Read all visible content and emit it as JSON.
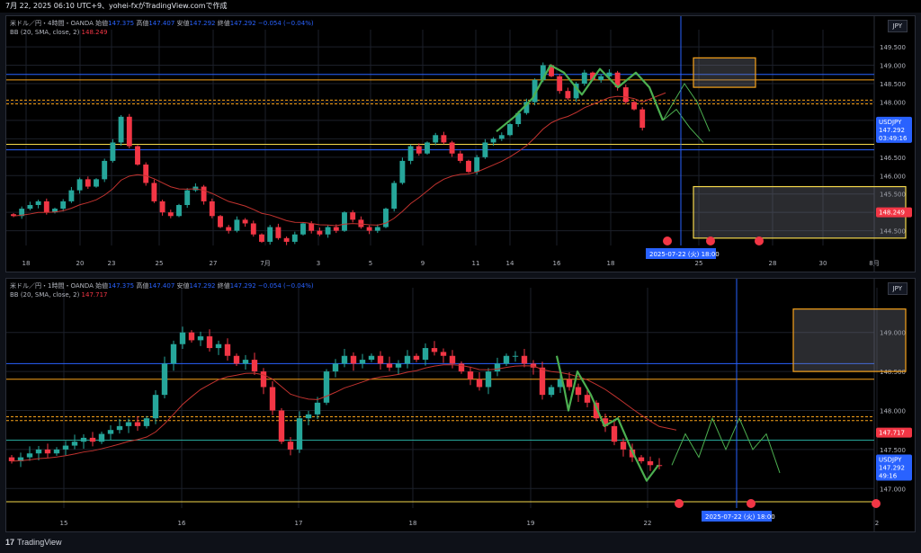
{
  "header": {
    "text": "7月 22, 2025 06:10 UTC+9、yohei-fxがTradingView.comで作成"
  },
  "colors": {
    "up": "#26a69a",
    "down": "#f23645",
    "bb": "#c2332f",
    "bg": "#000000",
    "blue_line": "#2962ff",
    "orange_line": "#f7a21b",
    "yellow_line": "#f5d84b",
    "green_path": "#4caf50"
  },
  "panes": [
    {
      "legend1": "米ドル／円・4時間・OANDA",
      "o_label": "始値",
      "o": "147.375",
      "h_label": "高値",
      "h": "147.407",
      "l_label": "安値",
      "l": "147.292",
      "c_label": "終値",
      "c": "147.292",
      "chg": "−0.054 (−0.04%)",
      "bb_label": "BB (20, SMA, close, 2)",
      "bb_value": "148.249",
      "currency": "JPY",
      "symbol": "USDJPY",
      "price": "147.292",
      "countdown": "03:49:16",
      "bb_tag": "148.249",
      "cursor_date": "2025-07-22 (火)",
      "cursor_time": "18:00",
      "x_ticks": [
        "18",
        "20",
        "23",
        "25",
        "27",
        "7月",
        "3",
        "5",
        "9",
        "11",
        "14",
        "16",
        "18",
        "25",
        "28",
        "30",
        "8月"
      ],
      "y_ticks": [
        "149.500",
        "149.000",
        "148.500",
        "148.000",
        "147.500",
        "147.000",
        "146.500",
        "146.000",
        "145.500",
        "145.000",
        "144.500"
      ]
    },
    {
      "legend1": "米ドル／円・1時間・OANDA",
      "o_label": "始値",
      "o": "147.375",
      "h_label": "高値",
      "h": "147.407",
      "l_label": "安値",
      "l": "147.292",
      "c_label": "終値",
      "c": "147.292",
      "chg": "−0.054 (−0.04%)",
      "bb_label": "BB (20, SMA, close, 2)",
      "bb_value": "147.717",
      "currency": "JPY",
      "symbol": "USDJPY",
      "price": "147.292",
      "countdown": "49:16",
      "bb_tag": "147.717",
      "cursor_date": "2025-07-22 (火)",
      "cursor_time": "18:00",
      "x_ticks": [
        "15",
        "16",
        "17",
        "18",
        "19",
        "22",
        "2"
      ],
      "y_ticks": [
        "149.000",
        "148.500",
        "148.000",
        "147.500",
        "147.000"
      ]
    }
  ],
  "brand": {
    "logo": "17",
    "name": "TradingView"
  },
  "chart_data": [
    {
      "type": "candlestick",
      "title": "米ドル／円・4時間・OANDA",
      "ylim": [
        144.1,
        149.6
      ],
      "series": [
        {
          "name": "USDJPY",
          "values": [
            144.9,
            145.1,
            145.2,
            145.3,
            145.0,
            145.1,
            145.3,
            145.6,
            145.9,
            145.7,
            145.9,
            146.4,
            146.9,
            147.6,
            146.8,
            146.3,
            145.8,
            145.3,
            145.0,
            144.9,
            145.2,
            145.6,
            145.7,
            145.3,
            144.9,
            144.6,
            144.5,
            144.8,
            144.7,
            144.4,
            144.2,
            144.6,
            144.3,
            144.2,
            144.4,
            144.7,
            144.5,
            144.4,
            144.6,
            144.5,
            145.0,
            144.8,
            144.6,
            144.5,
            144.6,
            145.1,
            145.8,
            146.4,
            146.8,
            146.6,
            146.9,
            147.1,
            146.9,
            146.6,
            146.4,
            146.1,
            146.5,
            146.9,
            147.0,
            147.1,
            147.4,
            147.7,
            148.0,
            148.6,
            149.0,
            148.7,
            148.3,
            148.1,
            148.5,
            148.8,
            148.6,
            148.7,
            148.8,
            148.4,
            148.0,
            147.8,
            147.3
          ]
        },
        {
          "name": "BB (20, SMA, close, 2)",
          "values": [
            145.0,
            145.0,
            145.1,
            145.2,
            145.3,
            145.4,
            145.5,
            145.6,
            145.7,
            145.7,
            145.6,
            145.4,
            145.3,
            145.2,
            145.1,
            145.0,
            144.9,
            144.8,
            144.7,
            144.6,
            144.5,
            144.5,
            144.6,
            144.8,
            145.0,
            145.3,
            145.6,
            145.9,
            146.1,
            146.4,
            146.6,
            146.8,
            147.0,
            147.2,
            147.4,
            147.7,
            147.9,
            148.1,
            148.3,
            148.2
          ]
        },
        {
          "name": "BB (20, SMA, close, 2)",
          "values": [
            148.249
          ]
        }
      ]
    },
    {
      "type": "candlestick",
      "title": "米ドル／円・1時間・OANDA",
      "ylim": [
        146.75,
        149.4
      ],
      "series": [
        {
          "name": "USDJPY",
          "values": [
            147.35,
            147.4,
            147.45,
            147.5,
            147.45,
            147.5,
            147.55,
            147.6,
            147.65,
            147.6,
            147.7,
            147.75,
            147.8,
            147.85,
            147.8,
            147.9,
            148.2,
            148.6,
            148.85,
            149.0,
            148.9,
            148.95,
            148.8,
            148.85,
            148.7,
            148.6,
            148.65,
            148.5,
            148.3,
            148.0,
            147.6,
            147.5,
            147.9,
            147.95,
            148.1,
            148.5,
            148.6,
            148.7,
            148.6,
            148.65,
            148.7,
            148.6,
            148.55,
            148.6,
            148.7,
            148.65,
            148.8,
            148.75,
            148.7,
            148.6,
            148.5,
            148.4,
            148.3,
            148.5,
            148.6,
            148.7,
            148.7,
            148.6,
            148.55,
            148.2,
            148.3,
            148.4,
            148.3,
            148.2,
            148.1,
            147.9,
            147.8,
            147.6,
            147.5,
            147.4,
            147.35,
            147.3,
            147.29
          ]
        },
        {
          "name": "BB (20, SMA, close, 2)",
          "values": [
            147.717
          ]
        }
      ]
    }
  ]
}
